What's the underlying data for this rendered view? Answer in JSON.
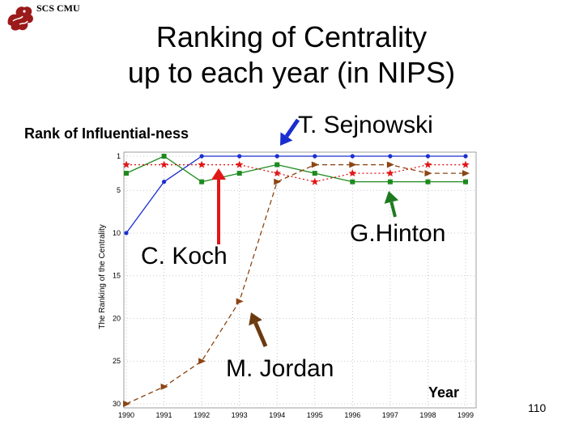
{
  "header": {
    "logo_text": "SCS CMU"
  },
  "title": {
    "line1": "Ranking of Centrality",
    "line2": "up to each year (in NIPS)"
  },
  "subtitle": "Rank of Influential-ness",
  "page_number": "110",
  "chart_data": {
    "type": "line",
    "x": [
      1990,
      1991,
      1992,
      1993,
      1994,
      1995,
      1996,
      1997,
      1998,
      1999
    ],
    "x_tick_labels": [
      "1990",
      "1991",
      "1992",
      "1993",
      "1994",
      "1995",
      "1996",
      "1997",
      "1998",
      "1999"
    ],
    "y_tick_labels": [
      "1",
      "5",
      "10",
      "15",
      "20",
      "25",
      "30"
    ],
    "y_ticks": [
      1,
      5,
      10,
      15,
      20,
      25,
      30
    ],
    "ylim": [
      30,
      0
    ],
    "y_inverted": true,
    "xlim": [
      1990,
      1999
    ],
    "ylabel": "The Ranking of the Centrality",
    "xlabel": "Year",
    "grid": true,
    "series": [
      {
        "name": "T. Sejnowski",
        "color": "#1a2ed0",
        "marker": "dot",
        "dash": "solid",
        "values": [
          10,
          4,
          1,
          1,
          1,
          1,
          1,
          1,
          1,
          1
        ]
      },
      {
        "name": "G.Hinton",
        "color": "#1e8a1e",
        "marker": "square",
        "dash": "solid",
        "values": [
          3,
          1,
          4,
          3,
          2,
          3,
          4,
          4,
          4,
          4
        ]
      },
      {
        "name": "C. Koch",
        "color": "#e01818",
        "marker": "star",
        "dash": "dotted",
        "values": [
          2,
          2,
          2,
          2,
          3,
          4,
          3,
          3,
          2,
          2
        ]
      },
      {
        "name": "M. Jordan",
        "color": "#8b4513",
        "marker": "triangle",
        "dash": "dashed",
        "values": [
          30,
          28,
          25,
          18,
          4,
          2,
          2,
          2,
          3,
          3
        ]
      }
    ],
    "annotations": [
      {
        "id": "sejnowski",
        "text": "T. Sejnowski",
        "color": "#000000"
      },
      {
        "id": "hinton",
        "text": "G.Hinton",
        "color": "#000000"
      },
      {
        "id": "koch",
        "text": "C. Koch",
        "color": "#000000"
      },
      {
        "id": "jordan",
        "text": "M. Jordan",
        "color": "#000000"
      }
    ],
    "arrow_colors": {
      "sejnowski": "#1a2ed0",
      "hinton": "#1e7a1e",
      "koch": "#e01818",
      "jordan": "#6b3a10"
    }
  }
}
